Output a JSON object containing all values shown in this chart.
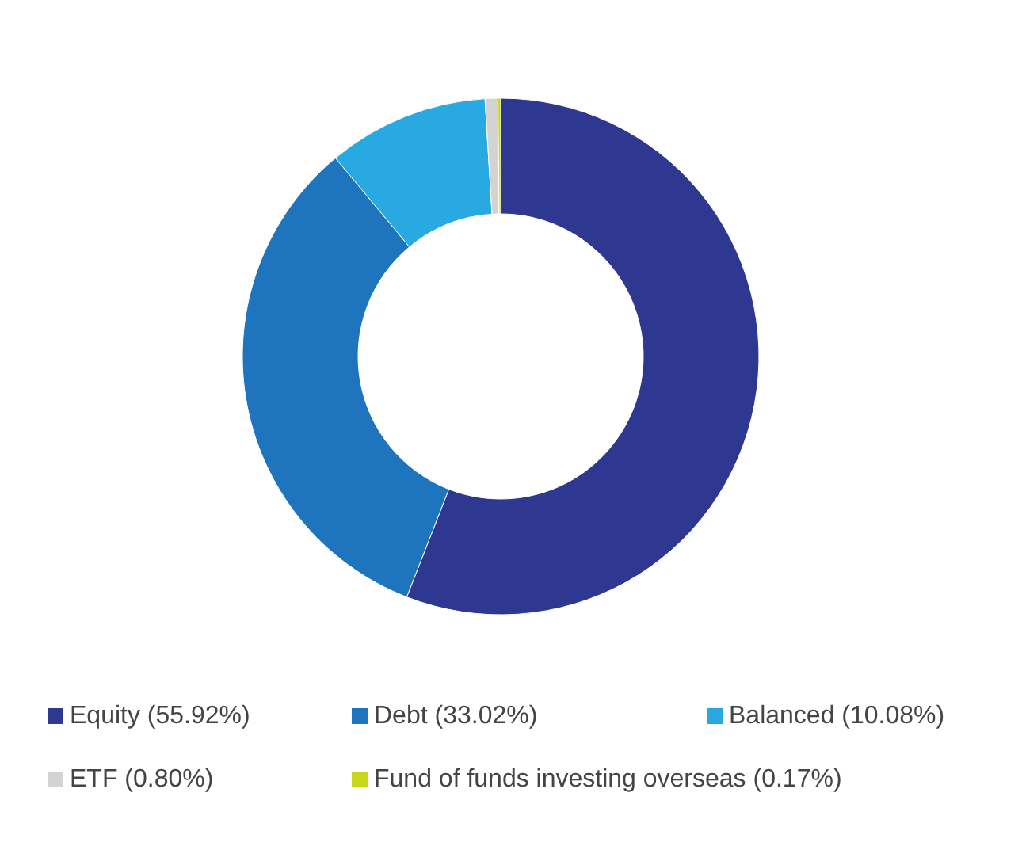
{
  "chart_data": {
    "type": "donut",
    "categories": [
      "Equity",
      "Debt",
      "Balanced",
      "ETF",
      "Fund of funds investing overseas"
    ],
    "values": [
      55.92,
      33.02,
      10.08,
      0.8,
      0.17
    ],
    "value_labels": [
      "(55.92%)",
      "(33.02%)",
      "(10.08%)",
      "(0.80%)",
      "(0.17%)"
    ],
    "colors": [
      "#2e3890",
      "#1e74bd",
      "#29a9e1",
      "#d3d3d3",
      "#c9d81a"
    ],
    "legend": "bottom"
  }
}
